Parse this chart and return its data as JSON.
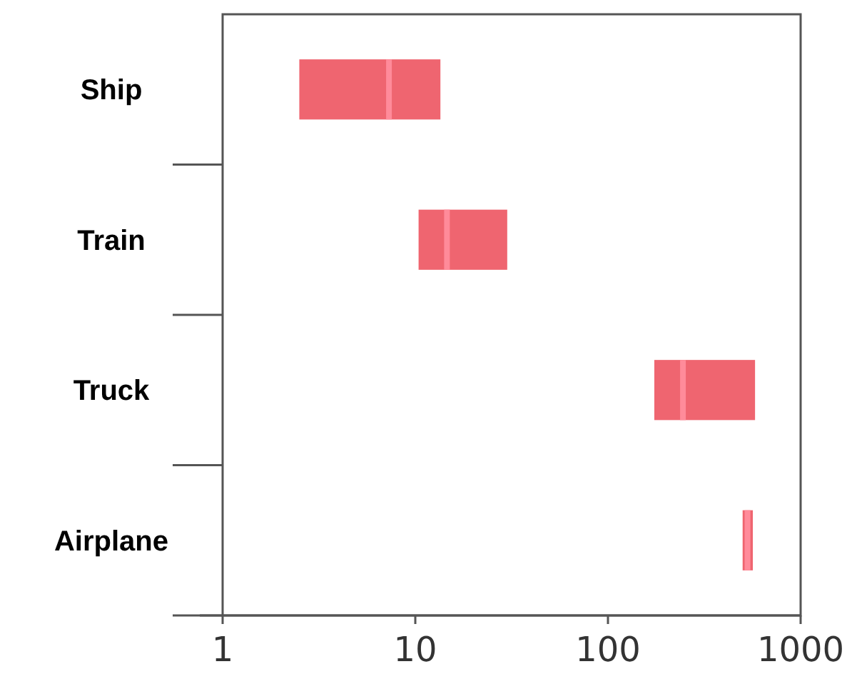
{
  "chart_data": {
    "type": "box",
    "orientation": "horizontal",
    "categories": [
      "Ship",
      "Train",
      "Truck",
      "Airplane"
    ],
    "log": "x",
    "xlim": [
      1,
      1000
    ],
    "xticks": [
      1,
      10,
      100,
      1000
    ],
    "grid": false,
    "series": [
      {
        "color": "#ef6570",
        "boxes": [
          {
            "low": 2.5,
            "q1": 2.5,
            "median": 7.3,
            "q3": 13.5,
            "high": 13.5
          },
          {
            "low": 10.4,
            "q1": 10.4,
            "median": 14.6,
            "q3": 30,
            "high": 30
          },
          {
            "low": 174,
            "q1": 174,
            "median": 245,
            "q3": 580,
            "high": 580
          },
          {
            "low": 500,
            "q1": 500,
            "median": 530,
            "q3": 565,
            "high": 565
          }
        ]
      }
    ]
  }
}
